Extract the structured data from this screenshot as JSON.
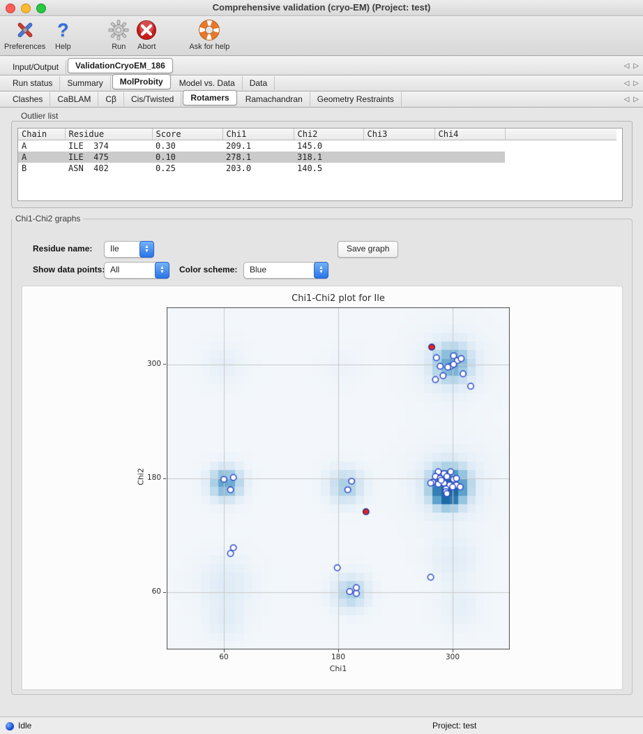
{
  "window": {
    "title": "Comprehensive validation (cryo-EM) (Project: test)"
  },
  "toolbar": {
    "items": [
      {
        "label": "Preferences",
        "icon": "tools-icon"
      },
      {
        "label": "Help",
        "icon": "help-icon"
      },
      {
        "label": "Run",
        "icon": "run-gear-icon"
      },
      {
        "label": "Abort",
        "icon": "abort-icon"
      },
      {
        "label": "Ask for help",
        "icon": "lifesaver-icon"
      }
    ]
  },
  "tab_rows": {
    "level1": {
      "tabs": [
        "Input/Output",
        "ValidationCryoEM_186"
      ],
      "active": "ValidationCryoEM_186"
    },
    "level2": {
      "tabs": [
        "Run status",
        "Summary",
        "MolProbity",
        "Model vs. Data",
        "Data"
      ],
      "active": "MolProbity"
    },
    "level3": {
      "tabs": [
        "Clashes",
        "CaBLAM",
        "Cβ",
        "Cis/Twisted",
        "Rotamers",
        "Ramachandran",
        "Geometry Restraints"
      ],
      "active": "Rotamers"
    },
    "scroll_left_icon": "◁",
    "scroll_right_icon": "▷"
  },
  "outlier_list": {
    "label": "Outlier list",
    "columns": [
      "Chain",
      "Residue",
      "Score",
      "Chi1",
      "Chi2",
      "Chi3",
      "Chi4",
      ""
    ],
    "rows": [
      {
        "chain": "A",
        "residue": "ILE  374",
        "score": "0.30",
        "chi1": "209.1",
        "chi2": "145.0",
        "chi3": "",
        "chi4": ""
      },
      {
        "chain": "A",
        "residue": "ILE  475",
        "score": "0.10",
        "chi1": "278.1",
        "chi2": "318.1",
        "chi3": "",
        "chi4": ""
      },
      {
        "chain": "B",
        "residue": "ASN  402",
        "score": "0.25",
        "chi1": "203.0",
        "chi2": "140.5",
        "chi3": "",
        "chi4": ""
      }
    ],
    "selected_row_index": 1
  },
  "graphs_panel": {
    "label": "Chi1-Chi2 graphs",
    "residue_name_label": "Residue name:",
    "residue_name_value": "Ile",
    "show_points_label": "Show data points:",
    "show_points_value": "All",
    "color_scheme_label": "Color scheme:",
    "color_scheme_value": "Blue",
    "save_button": "Save graph"
  },
  "status_bar": {
    "status": "Idle",
    "project": "Project: test"
  },
  "chart_data": {
    "type": "scatter",
    "title": "Chi1-Chi2 plot for Ile",
    "xlabel": "Chi1",
    "ylabel": "Chi2",
    "xlim": [
      0,
      360
    ],
    "ylim": [
      0,
      360
    ],
    "xticks": [
      60,
      180,
      300
    ],
    "yticks": [
      60,
      180,
      300
    ],
    "grid": true,
    "background": "#f3f7fb",
    "grid_color": "#c9c9c9",
    "border_color": "#4a4a4a",
    "series": [
      {
        "name": "data points",
        "marker": "circle",
        "radius": 4.2,
        "stroke_width": 1.5,
        "fill": "#ffffff",
        "stroke": "#2a46c8",
        "points": [
          [
            283,
            307
          ],
          [
            301,
            309
          ],
          [
            305,
            304
          ],
          [
            309,
            306
          ],
          [
            287,
            298
          ],
          [
            298,
            298
          ],
          [
            301,
            300
          ],
          [
            295,
            297
          ],
          [
            311,
            290
          ],
          [
            290,
            288
          ],
          [
            282,
            284
          ],
          [
            319,
            277
          ],
          [
            60,
            179
          ],
          [
            70,
            181
          ],
          [
            67,
            168
          ],
          [
            194,
            177
          ],
          [
            190,
            168
          ],
          [
            285,
            187
          ],
          [
            291,
            185
          ],
          [
            298,
            187
          ],
          [
            282,
            182
          ],
          [
            287,
            180
          ],
          [
            294,
            182
          ],
          [
            301,
            179
          ],
          [
            304,
            180
          ],
          [
            279,
            176
          ],
          [
            277,
            175
          ],
          [
            285,
            174
          ],
          [
            291,
            175
          ],
          [
            288,
            178
          ],
          [
            297,
            173
          ],
          [
            304,
            173
          ],
          [
            308,
            171
          ],
          [
            300,
            171
          ],
          [
            293,
            169
          ],
          [
            293,
            166
          ],
          [
            294,
            164
          ],
          [
            70,
            107
          ],
          [
            67,
            101
          ],
          [
            179,
            86
          ],
          [
            192,
            61
          ],
          [
            199,
            65
          ],
          [
            199,
            59
          ],
          [
            277,
            76
          ]
        ]
      },
      {
        "name": "outliers",
        "marker": "circle",
        "radius": 4.2,
        "stroke_width": 1.5,
        "fill": "#e02525",
        "stroke": "#20298c",
        "points": [
          [
            209.1,
            145.0
          ],
          [
            278.1,
            318.1
          ]
        ]
      }
    ],
    "density_background": {
      "colormap": "Blues",
      "cell_deg": 9,
      "blobs": [
        [
          297,
          175,
          30,
          0.12
        ],
        [
          296,
          172,
          14,
          0.9
        ],
        [
          294,
          162,
          8,
          0.55
        ],
        [
          299,
          300,
          28,
          0.1
        ],
        [
          299,
          301,
          14,
          0.55
        ],
        [
          62,
          175,
          12,
          0.65
        ],
        [
          188,
          172,
          13,
          0.4
        ],
        [
          193,
          60,
          13,
          0.38
        ],
        [
          62,
          70,
          20,
          0.15
        ],
        [
          300,
          95,
          17,
          0.14
        ],
        [
          308,
          45,
          16,
          0.1
        ],
        [
          60,
          300,
          15,
          0.1
        ],
        [
          185,
          298,
          14,
          0.05
        ],
        [
          62,
          30,
          14,
          0.12
        ]
      ]
    }
  }
}
